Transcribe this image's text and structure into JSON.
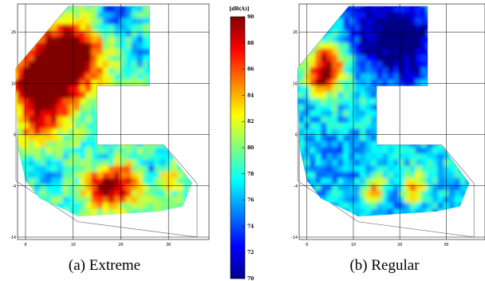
{
  "chart_data": {
    "type": "heatmap",
    "colorbar": {
      "label": "[dB(A)]",
      "ticks": [
        70,
        72,
        74,
        76,
        78,
        80,
        82,
        84,
        86,
        88,
        90
      ],
      "range": [
        70,
        90
      ]
    },
    "panels": [
      {
        "name": "extreme",
        "caption": "(a) Extreme",
        "x_ticks": [
          "0",
          "10",
          "20",
          "30"
        ],
        "y_ticks": [
          "-14",
          "-4",
          "6",
          "16",
          "26"
        ],
        "xlim": [
          -1,
          37
        ],
        "ylim": [
          -14,
          31
        ],
        "base_level": 79,
        "hotspots": [
          {
            "x": 1.5,
            "y": 16,
            "level": 89,
            "r": 3
          },
          {
            "x": 6,
            "y": 18,
            "level": 87,
            "r": 5
          },
          {
            "x": 3,
            "y": 11,
            "level": 86,
            "r": 4
          },
          {
            "x": 10,
            "y": 20,
            "level": 86,
            "r": 4
          },
          {
            "x": 8,
            "y": 23,
            "level": 85,
            "r": 4
          },
          {
            "x": 2,
            "y": 6,
            "level": 83,
            "r": 3
          },
          {
            "x": 19,
            "y": -4,
            "level": 88,
            "r": 3
          },
          {
            "x": 15,
            "y": -5,
            "level": 87,
            "r": 2.5
          },
          {
            "x": 29,
            "y": -3,
            "level": 84,
            "r": 2
          },
          {
            "x": 18,
            "y": 29,
            "level": 74,
            "r": 2.5
          },
          {
            "x": 24,
            "y": 22,
            "level": 76,
            "r": 2.5
          },
          {
            "x": 4,
            "y": -1,
            "level": 76,
            "r": 2.5
          },
          {
            "x": 26,
            "y": -1,
            "level": 75,
            "r": 2
          },
          {
            "x": 16,
            "y": 0,
            "level": 76,
            "r": 2
          }
        ]
      },
      {
        "name": "regular",
        "caption": "(b) Regular",
        "x_ticks": [
          "0",
          "10",
          "20",
          "30"
        ],
        "y_ticks": [
          "-14",
          "-4",
          "6",
          "16",
          "26"
        ],
        "xlim": [
          -1,
          37
        ],
        "ylim": [
          -14,
          31
        ],
        "base_level": 76.5,
        "hotspots": [
          {
            "x": 4,
            "y": 20,
            "level": 87,
            "r": 3
          },
          {
            "x": 2.5,
            "y": 16,
            "level": 86,
            "r": 2.5
          },
          {
            "x": 16,
            "y": 26,
            "level": 71,
            "r": 6
          },
          {
            "x": 21,
            "y": 22,
            "level": 72,
            "r": 5
          },
          {
            "x": 14,
            "y": -5,
            "level": 86,
            "r": 2
          },
          {
            "x": 22,
            "y": -5,
            "level": 86,
            "r": 2
          },
          {
            "x": 18,
            "y": -6,
            "level": 73,
            "r": 2
          },
          {
            "x": 12,
            "y": -3,
            "level": 74,
            "r": 2
          },
          {
            "x": 10,
            "y": 12,
            "level": 78,
            "r": 3
          },
          {
            "x": 26,
            "y": -1,
            "level": 78,
            "r": 3
          },
          {
            "x": 5,
            "y": 1,
            "level": 75,
            "r": 3
          }
        ]
      }
    ]
  }
}
